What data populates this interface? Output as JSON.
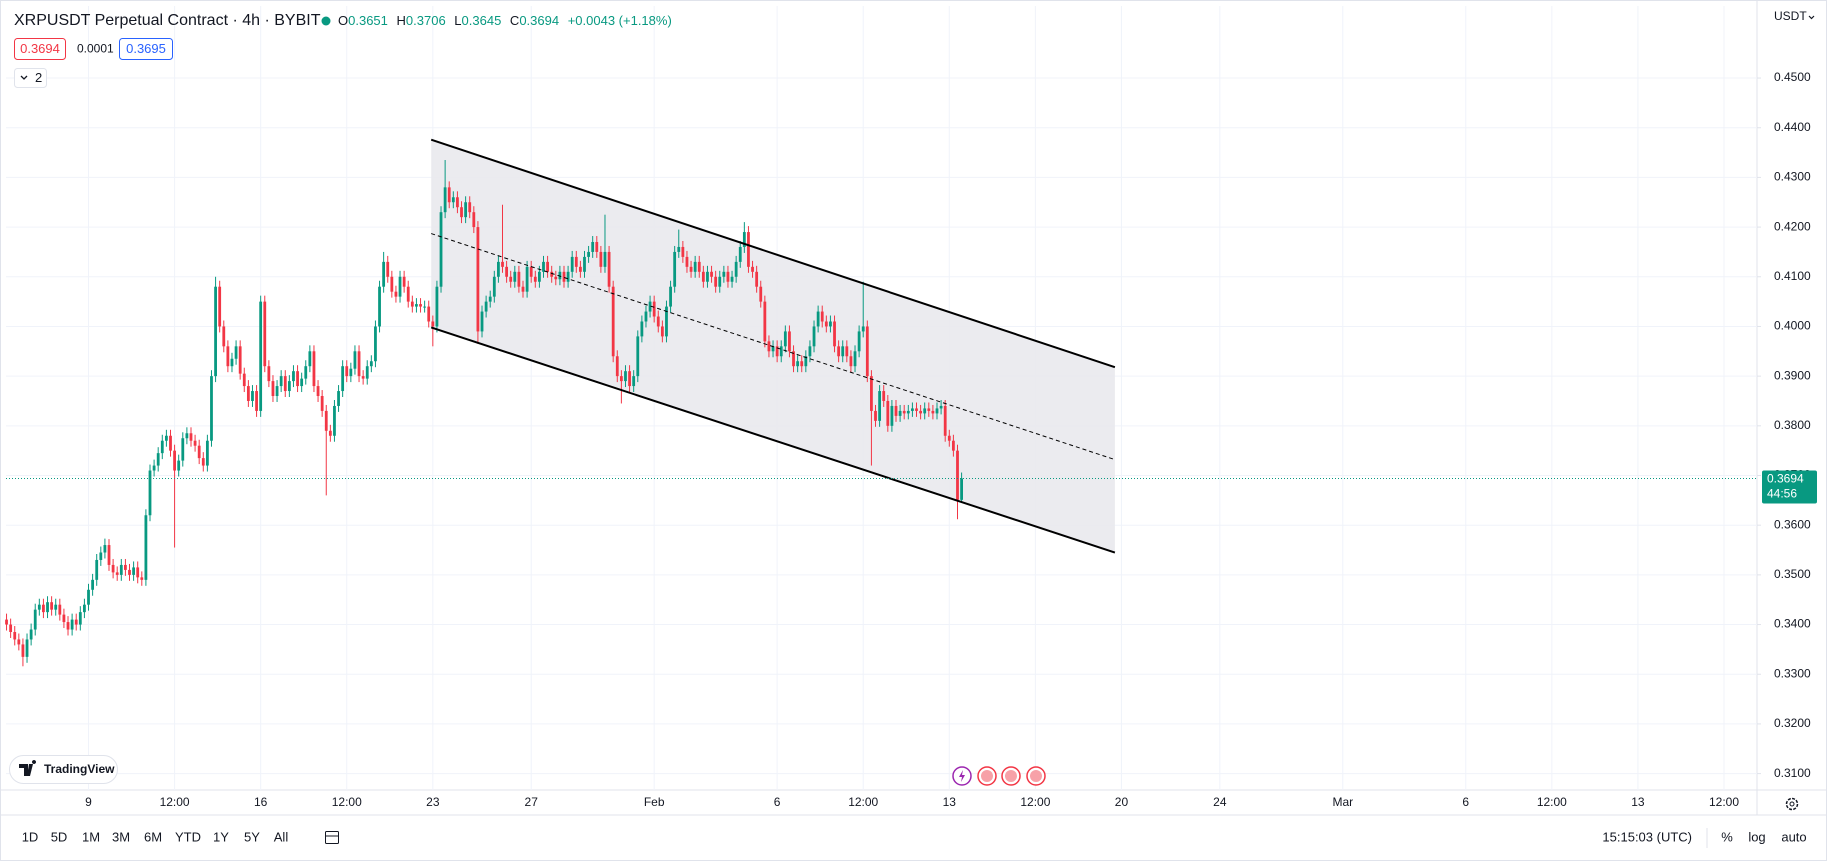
{
  "chart_data": {
    "type": "candlestick",
    "title": "XRPUSDT Perpetual Contract · 4h · BYBIT",
    "legend": {
      "labels": [
        "O",
        "H",
        "L",
        "C"
      ],
      "open": 0.3651,
      "high": 0.3706,
      "low": 0.3645,
      "close": 0.3694,
      "change": "+0.0043 (+1.18%)"
    },
    "trade_panel": {
      "sell": 0.3694,
      "spread": 0.0001,
      "buy": 0.3695
    },
    "indicators": 2,
    "currency": "USDT",
    "brand": "TradingView",
    "last_price": 0.3694,
    "countdown": "44:56",
    "colors": {
      "up": "#089981",
      "down": "#f23645"
    },
    "grid": true,
    "xlim": [
      -0.13,
      427.05
    ],
    "ylim": [
      0.3067,
      0.4645
    ],
    "yticks": [
      {
        "value": 0.31,
        "label": "0.3100"
      },
      {
        "value": 0.32,
        "label": "0.3200"
      },
      {
        "value": 0.33,
        "label": "0.3300"
      },
      {
        "value": 0.34,
        "label": "0.3400"
      },
      {
        "value": 0.35,
        "label": "0.3500"
      },
      {
        "value": 0.36,
        "label": "0.3600"
      },
      {
        "value": 0.37,
        "label": "0.3700"
      },
      {
        "value": 0.38,
        "label": "0.3800"
      },
      {
        "value": 0.39,
        "label": "0.3900"
      },
      {
        "value": 0.4,
        "label": "0.4000"
      },
      {
        "value": 0.41,
        "label": "0.4100"
      },
      {
        "value": 0.42,
        "label": "0.4200"
      },
      {
        "value": 0.43,
        "label": "0.4300"
      },
      {
        "value": 0.44,
        "label": "0.4400"
      },
      {
        "value": 0.45,
        "label": "0.4500"
      }
    ],
    "xticks": [
      {
        "value": 20,
        "label": "9"
      },
      {
        "value": 41,
        "label": "12:00"
      },
      {
        "value": 62,
        "label": "16"
      },
      {
        "value": 83,
        "label": "12:00"
      },
      {
        "value": 104,
        "label": "23"
      },
      {
        "value": 128,
        "label": "27"
      },
      {
        "value": 158,
        "label": "Feb"
      },
      {
        "value": 188,
        "label": "6"
      },
      {
        "value": 209,
        "label": "12:00"
      },
      {
        "value": 230,
        "label": "13"
      },
      {
        "value": 251,
        "label": "12:00"
      },
      {
        "value": 272,
        "label": "20"
      },
      {
        "value": 296,
        "label": "24"
      },
      {
        "value": 326,
        "label": "Mar"
      },
      {
        "value": 356,
        "label": "6"
      },
      {
        "value": 377,
        "label": "12:00"
      },
      {
        "value": 398,
        "label": "13"
      },
      {
        "value": 419,
        "label": "12:00"
      }
    ],
    "channel": {
      "x": [
        103.6,
        270.4
      ],
      "upper": [
        0.4376,
        0.3918
      ],
      "middle": [
        0.4187,
        0.3732
      ],
      "lower": [
        0.3998,
        0.3545
      ],
      "color": "#000000",
      "fill": "#e9e9ed"
    },
    "x": [
      0,
      1,
      2,
      3,
      4,
      5,
      6,
      7,
      8,
      9,
      10,
      11,
      12,
      13,
      14,
      15,
      16,
      17,
      18,
      19,
      20,
      21,
      22,
      23,
      24,
      25,
      26,
      27,
      28,
      29,
      30,
      31,
      32,
      33,
      34,
      35,
      36,
      37,
      38,
      39,
      40,
      41,
      42,
      43,
      44,
      45,
      46,
      47,
      48,
      49,
      50,
      51,
      52,
      53,
      54,
      55,
      56,
      57,
      58,
      59,
      60,
      61,
      62,
      63,
      64,
      65,
      66,
      67,
      68,
      69,
      70,
      71,
      72,
      73,
      74,
      75,
      76,
      77,
      78,
      79,
      80,
      81,
      82,
      83,
      84,
      85,
      86,
      87,
      88,
      89,
      90,
      91,
      92,
      93,
      94,
      95,
      96,
      97,
      98,
      99,
      100,
      101,
      102,
      103,
      104,
      105,
      106,
      107,
      108,
      109,
      110,
      111,
      112,
      113,
      114,
      115,
      116,
      117,
      118,
      119,
      120,
      121,
      122,
      123,
      124,
      125,
      126,
      127,
      128,
      129,
      130,
      131,
      132,
      133,
      134,
      135,
      136,
      137,
      138,
      139,
      140,
      141,
      142,
      143,
      144,
      145,
      146,
      147,
      148,
      149,
      150,
      151,
      152,
      153,
      154,
      155,
      156,
      157,
      158,
      159,
      160,
      161,
      162,
      163,
      164,
      165,
      166,
      167,
      168,
      169,
      170,
      171,
      172,
      173,
      174,
      175,
      176,
      177,
      178,
      179,
      180,
      181,
      182,
      183,
      184,
      185,
      186,
      187,
      188,
      189,
      190,
      191,
      192,
      193,
      194,
      195,
      196,
      197,
      198,
      199,
      200,
      201,
      202,
      203,
      204,
      205,
      206,
      207,
      208,
      209,
      210,
      211,
      212,
      213,
      214,
      215,
      216,
      217,
      218,
      219,
      220,
      221,
      222,
      223,
      224,
      225,
      226,
      227,
      228,
      229,
      230,
      231,
      232,
      233
    ],
    "open": [
      0.341,
      0.34,
      0.3385,
      0.337,
      0.336,
      0.3335,
      0.337,
      0.339,
      0.343,
      0.344,
      0.3425,
      0.3445,
      0.343,
      0.344,
      0.342,
      0.3405,
      0.339,
      0.341,
      0.34,
      0.3425,
      0.344,
      0.347,
      0.349,
      0.353,
      0.3545,
      0.356,
      0.352,
      0.3505,
      0.35,
      0.352,
      0.351,
      0.35,
      0.3515,
      0.3495,
      0.349,
      0.362,
      0.371,
      0.372,
      0.3745,
      0.377,
      0.378,
      0.375,
      0.371,
      0.373,
      0.3775,
      0.3785,
      0.377,
      0.376,
      0.3735,
      0.372,
      0.377,
      0.39,
      0.408,
      0.4,
      0.396,
      0.392,
      0.3935,
      0.396,
      0.3905,
      0.388,
      0.385,
      0.387,
      0.383,
      0.405,
      0.392,
      0.389,
      0.386,
      0.388,
      0.39,
      0.387,
      0.389,
      0.391,
      0.388,
      0.3895,
      0.392,
      0.395,
      0.388,
      0.386,
      0.383,
      0.379,
      0.378,
      0.384,
      0.387,
      0.392,
      0.39,
      0.3915,
      0.395,
      0.39,
      0.3895,
      0.392,
      0.393,
      0.4,
      0.408,
      0.413,
      0.41,
      0.407,
      0.406,
      0.41,
      0.408,
      0.405,
      0.404,
      0.4045,
      0.404,
      0.404,
      0.401,
      0.4,
      0.408,
      0.423,
      0.428,
      0.425,
      0.426,
      0.424,
      0.422,
      0.425,
      0.423,
      0.42,
      0.399,
      0.403,
      0.405,
      0.406,
      0.41,
      0.413,
      0.412,
      0.41,
      0.409,
      0.411,
      0.408,
      0.407,
      0.412,
      0.41,
      0.409,
      0.411,
      0.413,
      0.411,
      0.41,
      0.4095,
      0.411,
      0.409,
      0.411,
      0.414,
      0.412,
      0.411,
      0.414,
      0.415,
      0.417,
      0.415,
      0.412,
      0.415,
      0.408,
      0.394,
      0.39,
      0.389,
      0.391,
      0.388,
      0.39,
      0.398,
      0.401,
      0.403,
      0.405,
      0.402,
      0.4,
      0.398,
      0.404,
      0.408,
      0.415,
      0.416,
      0.414,
      0.412,
      0.411,
      0.413,
      0.411,
      0.409,
      0.411,
      0.41,
      0.408,
      0.41,
      0.411,
      0.409,
      0.41,
      0.413,
      0.416,
      0.419,
      0.412,
      0.411,
      0.408,
      0.405,
      0.397,
      0.395,
      0.396,
      0.394,
      0.396,
      0.399,
      0.395,
      0.392,
      0.393,
      0.392,
      0.394,
      0.396,
      0.4,
      0.403,
      0.401,
      0.4,
      0.401,
      0.396,
      0.394,
      0.396,
      0.394,
      0.392,
      0.395,
      0.399,
      0.4,
      0.39,
      0.383,
      0.381,
      0.387,
      0.385,
      0.38,
      0.384,
      0.382,
      0.383,
      0.3825,
      0.383,
      0.3835,
      0.383,
      0.3825,
      0.3835,
      0.383,
      0.3825,
      0.3835,
      0.384,
      0.378,
      0.377,
      0.375,
      0.3651
    ],
    "high": [
      0.3422,
      0.3412,
      0.3397,
      0.3382,
      0.3372,
      0.3382,
      0.3402,
      0.3442,
      0.3452,
      0.3452,
      0.3457,
      0.3457,
      0.3452,
      0.3452,
      0.3432,
      0.3417,
      0.3422,
      0.3422,
      0.3437,
      0.3452,
      0.3482,
      0.3502,
      0.3542,
      0.3557,
      0.3573,
      0.3572,
      0.3532,
      0.3517,
      0.3532,
      0.3532,
      0.3522,
      0.3527,
      0.3527,
      0.3507,
      0.3632,
      0.3722,
      0.3732,
      0.3757,
      0.3782,
      0.3792,
      0.3792,
      0.3762,
      0.3742,
      0.3787,
      0.3797,
      0.3797,
      0.3782,
      0.3772,
      0.3747,
      0.3782,
      0.3912,
      0.41,
      0.4092,
      0.4012,
      0.3972,
      0.3947,
      0.3972,
      0.3972,
      0.3917,
      0.3892,
      0.3882,
      0.3882,
      0.4062,
      0.4062,
      0.3932,
      0.3902,
      0.3892,
      0.3912,
      0.3912,
      0.3902,
      0.3922,
      0.3922,
      0.3907,
      0.3932,
      0.3962,
      0.3962,
      0.3892,
      0.3872,
      0.3842,
      0.3802,
      0.3852,
      0.3882,
      0.3932,
      0.3932,
      0.3927,
      0.3962,
      0.3962,
      0.3912,
      0.3932,
      0.3942,
      0.4012,
      0.4092,
      0.415,
      0.4142,
      0.4112,
      0.4082,
      0.4112,
      0.4112,
      0.4092,
      0.4062,
      0.4057,
      0.4057,
      0.4052,
      0.4052,
      0.4022,
      0.4092,
      0.4242,
      0.4335,
      0.4292,
      0.4272,
      0.4272,
      0.4252,
      0.4262,
      0.4262,
      0.4242,
      0.4212,
      0.4042,
      0.4062,
      0.4072,
      0.4112,
      0.4142,
      0.4245,
      0.4132,
      0.4112,
      0.4122,
      0.4122,
      0.4092,
      0.4132,
      0.4132,
      0.4112,
      0.4122,
      0.4142,
      0.4142,
      0.4122,
      0.4112,
      0.4122,
      0.4122,
      0.4122,
      0.4152,
      0.4152,
      0.4132,
      0.4152,
      0.4162,
      0.4182,
      0.4182,
      0.4162,
      0.4225,
      0.4162,
      0.4092,
      0.3952,
      0.3912,
      0.3922,
      0.3922,
      0.3912,
      0.3992,
      0.4022,
      0.4042,
      0.4062,
      0.4062,
      0.4032,
      0.4012,
      0.4052,
      0.4092,
      0.4162,
      0.4195,
      0.4172,
      0.4152,
      0.4132,
      0.4142,
      0.4142,
      0.4122,
      0.4122,
      0.4122,
      0.4112,
      0.4112,
      0.4122,
      0.4122,
      0.4112,
      0.4142,
      0.4172,
      0.421,
      0.4202,
      0.4132,
      0.4122,
      0.4092,
      0.4062,
      0.3982,
      0.3972,
      0.3972,
      0.3972,
      0.4002,
      0.4002,
      0.3962,
      0.3942,
      0.3942,
      0.3952,
      0.3972,
      0.4012,
      0.4042,
      0.4042,
      0.4022,
      0.4022,
      0.4022,
      0.3972,
      0.3972,
      0.3972,
      0.3952,
      0.3962,
      0.4002,
      0.409,
      0.4012,
      0.3912,
      0.3842,
      0.3882,
      0.3882,
      0.3862,
      0.3852,
      0.3852,
      0.3842,
      0.3842,
      0.3842,
      0.3847,
      0.3847,
      0.3842,
      0.3847,
      0.3847,
      0.3842,
      0.3847,
      0.3852,
      0.3852,
      0.3792,
      0.3782,
      0.3762,
      0.3706
    ],
    "low": [
      0.3388,
      0.3373,
      0.3358,
      0.3348,
      0.3316,
      0.3323,
      0.3358,
      0.3378,
      0.3418,
      0.3413,
      0.3413,
      0.3418,
      0.3418,
      0.3408,
      0.3393,
      0.3378,
      0.3378,
      0.3388,
      0.3388,
      0.3413,
      0.3428,
      0.3458,
      0.3478,
      0.3518,
      0.3533,
      0.3508,
      0.3493,
      0.3488,
      0.3488,
      0.3498,
      0.3488,
      0.3488,
      0.3483,
      0.3478,
      0.3478,
      0.3608,
      0.3698,
      0.3708,
      0.3733,
      0.3758,
      0.3738,
      0.3555,
      0.3698,
      0.3718,
      0.3763,
      0.3758,
      0.3748,
      0.3723,
      0.3708,
      0.3708,
      0.3758,
      0.3888,
      0.3988,
      0.3948,
      0.3908,
      0.3908,
      0.3923,
      0.3893,
      0.3868,
      0.3838,
      0.3838,
      0.3818,
      0.3818,
      0.3908,
      0.3878,
      0.3848,
      0.3848,
      0.3868,
      0.3858,
      0.3858,
      0.3878,
      0.3868,
      0.3868,
      0.3883,
      0.3908,
      0.3868,
      0.3848,
      0.3818,
      0.366,
      0.3768,
      0.3768,
      0.3828,
      0.3858,
      0.3888,
      0.3888,
      0.3903,
      0.3888,
      0.3883,
      0.3883,
      0.3908,
      0.3918,
      0.3988,
      0.4068,
      0.4088,
      0.4058,
      0.4048,
      0.4048,
      0.4068,
      0.4038,
      0.4028,
      0.4028,
      0.4028,
      0.4028,
      0.3998,
      0.396,
      0.3988,
      0.4068,
      0.4218,
      0.4238,
      0.4238,
      0.4228,
      0.4208,
      0.4208,
      0.4218,
      0.4188,
      0.3965,
      0.3978,
      0.4018,
      0.4038,
      0.4048,
      0.4088,
      0.4108,
      0.4088,
      0.4078,
      0.4078,
      0.4068,
      0.4058,
      0.4058,
      0.4088,
      0.4078,
      0.4078,
      0.4098,
      0.4098,
      0.4088,
      0.4083,
      0.4083,
      0.4078,
      0.4078,
      0.4098,
      0.4108,
      0.4098,
      0.4098,
      0.4128,
      0.4138,
      0.4138,
      0.4108,
      0.4108,
      0.4068,
      0.3928,
      0.3888,
      0.3845,
      0.3878,
      0.3868,
      0.3868,
      0.3888,
      0.3968,
      0.3998,
      0.4018,
      0.4008,
      0.3988,
      0.3968,
      0.3968,
      0.4028,
      0.4068,
      0.4138,
      0.4128,
      0.4108,
      0.4098,
      0.4098,
      0.4098,
      0.4078,
      0.4078,
      0.4088,
      0.4068,
      0.4068,
      0.4088,
      0.4078,
      0.4078,
      0.4088,
      0.4118,
      0.4148,
      0.4108,
      0.4098,
      0.4068,
      0.4038,
      0.3958,
      0.3938,
      0.3938,
      0.3928,
      0.3928,
      0.3948,
      0.3938,
      0.3908,
      0.3908,
      0.3908,
      0.3908,
      0.3928,
      0.3948,
      0.3988,
      0.3998,
      0.3988,
      0.3988,
      0.3948,
      0.3928,
      0.3928,
      0.3928,
      0.3908,
      0.3908,
      0.3938,
      0.3978,
      0.3888,
      0.372,
      0.3798,
      0.3798,
      0.3838,
      0.3788,
      0.3788,
      0.3808,
      0.3808,
      0.3813,
      0.3813,
      0.3818,
      0.3818,
      0.3813,
      0.3813,
      0.3818,
      0.3813,
      0.3813,
      0.3823,
      0.3768,
      0.3758,
      0.3738,
      0.3612,
      0.3645
    ],
    "close": [
      0.34,
      0.3385,
      0.337,
      0.336,
      0.3335,
      0.337,
      0.339,
      0.343,
      0.344,
      0.3425,
      0.3445,
      0.343,
      0.344,
      0.342,
      0.3405,
      0.339,
      0.341,
      0.34,
      0.3425,
      0.344,
      0.347,
      0.349,
      0.353,
      0.3545,
      0.356,
      0.352,
      0.3505,
      0.35,
      0.352,
      0.351,
      0.35,
      0.3515,
      0.3495,
      0.349,
      0.362,
      0.371,
      0.372,
      0.3745,
      0.377,
      0.378,
      0.375,
      0.371,
      0.373,
      0.3775,
      0.3785,
      0.377,
      0.376,
      0.3735,
      0.372,
      0.377,
      0.39,
      0.408,
      0.4,
      0.396,
      0.392,
      0.3935,
      0.396,
      0.3905,
      0.388,
      0.385,
      0.387,
      0.383,
      0.405,
      0.392,
      0.389,
      0.386,
      0.388,
      0.39,
      0.387,
      0.389,
      0.391,
      0.388,
      0.3895,
      0.392,
      0.395,
      0.388,
      0.386,
      0.383,
      0.379,
      0.378,
      0.384,
      0.387,
      0.392,
      0.39,
      0.3915,
      0.395,
      0.39,
      0.3895,
      0.392,
      0.393,
      0.4,
      0.408,
      0.413,
      0.41,
      0.407,
      0.406,
      0.41,
      0.408,
      0.405,
      0.404,
      0.4045,
      0.404,
      0.404,
      0.401,
      0.4,
      0.408,
      0.423,
      0.428,
      0.425,
      0.426,
      0.424,
      0.422,
      0.425,
      0.423,
      0.42,
      0.399,
      0.403,
      0.405,
      0.406,
      0.41,
      0.413,
      0.412,
      0.41,
      0.409,
      0.411,
      0.408,
      0.407,
      0.412,
      0.41,
      0.409,
      0.411,
      0.413,
      0.411,
      0.41,
      0.4095,
      0.411,
      0.409,
      0.411,
      0.414,
      0.412,
      0.411,
      0.414,
      0.415,
      0.417,
      0.415,
      0.412,
      0.415,
      0.408,
      0.394,
      0.39,
      0.389,
      0.391,
      0.388,
      0.39,
      0.398,
      0.401,
      0.403,
      0.405,
      0.402,
      0.4,
      0.398,
      0.404,
      0.408,
      0.415,
      0.416,
      0.414,
      0.412,
      0.411,
      0.413,
      0.411,
      0.409,
      0.411,
      0.41,
      0.408,
      0.41,
      0.411,
      0.409,
      0.41,
      0.413,
      0.416,
      0.419,
      0.412,
      0.411,
      0.408,
      0.405,
      0.397,
      0.395,
      0.396,
      0.394,
      0.396,
      0.399,
      0.395,
      0.392,
      0.393,
      0.392,
      0.394,
      0.396,
      0.4,
      0.403,
      0.401,
      0.4,
      0.401,
      0.396,
      0.394,
      0.396,
      0.394,
      0.392,
      0.395,
      0.399,
      0.4,
      0.39,
      0.383,
      0.381,
      0.387,
      0.385,
      0.38,
      0.384,
      0.382,
      0.383,
      0.3825,
      0.383,
      0.3835,
      0.383,
      0.3825,
      0.3835,
      0.383,
      0.3825,
      0.3835,
      0.384,
      0.378,
      0.377,
      0.375,
      0.3651,
      0.3694
    ],
    "toolbar": {
      "ranges": [
        "1D",
        "5D",
        "1M",
        "3M",
        "6M",
        "YTD",
        "1Y",
        "5Y",
        "All"
      ],
      "clock": "15:15:03 (UTC)",
      "scale": [
        "%",
        "log",
        "auto"
      ]
    }
  }
}
